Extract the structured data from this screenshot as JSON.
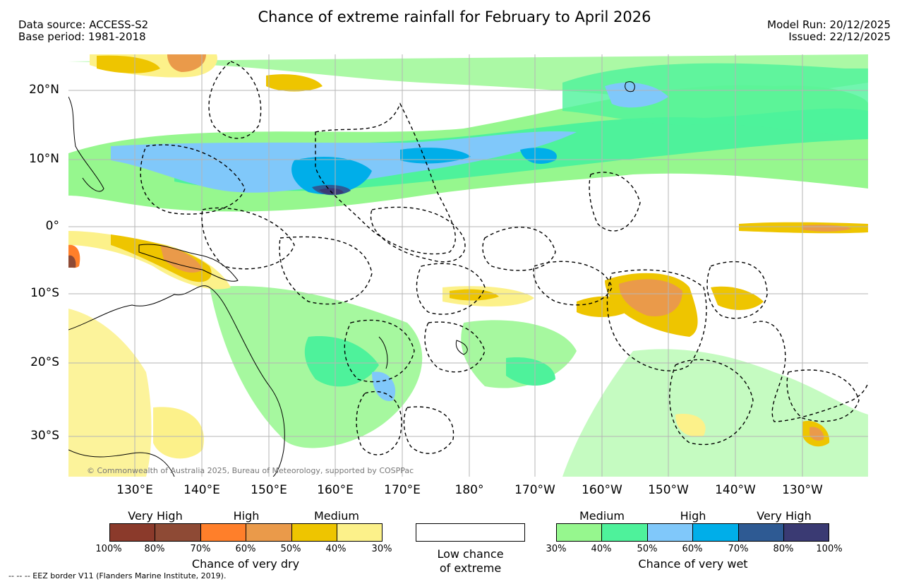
{
  "title": "Chance of extreme rainfall for February to April 2026",
  "data_source": "Data source: ACCESS-S2",
  "base_period": "Base period: 1981-2018",
  "model_run": "Model Run: 20/12/2025",
  "issued": "Issued: 22/12/2025",
  "copyright": "© Commonwealth of Australia 2025, Bureau of Meteorology, supported by COSPPac",
  "footnote": "--  --  -- EEZ border V11 (Flanders Marine Institute, 2019).",
  "lat_labels": [
    "20°N",
    "10°N",
    "0°",
    "10°S",
    "20°S",
    "30°S"
  ],
  "lon_labels": [
    "130°E",
    "140°E",
    "150°E",
    "160°E",
    "170°E",
    "180°",
    "170°W",
    "160°W",
    "150°W",
    "140°W",
    "130°W"
  ],
  "legend": {
    "dry": {
      "caption": "Chance of very dry",
      "categories": [
        "Very High",
        "High",
        "Medium"
      ],
      "ticks": [
        "100%",
        "80%",
        "70%",
        "60%",
        "50%",
        "40%",
        "30%"
      ],
      "colors": [
        "#8b3a2b",
        "#8e4a35",
        "#ff7f2a",
        "#ea9a4a",
        "#eec500",
        "#fcf18a"
      ]
    },
    "low": {
      "caption_line1": "Low chance",
      "caption_line2": "of extreme"
    },
    "wet": {
      "caption": "Chance of very wet",
      "categories": [
        "Medium",
        "High",
        "Very High"
      ],
      "ticks": [
        "30%",
        "40%",
        "50%",
        "60%",
        "70%",
        "80%",
        "100%"
      ],
      "colors": [
        "#96f78e",
        "#4ef29b",
        "#80c8fa",
        "#00aee9",
        "#2e5a93",
        "#3a3a73"
      ]
    }
  }
}
